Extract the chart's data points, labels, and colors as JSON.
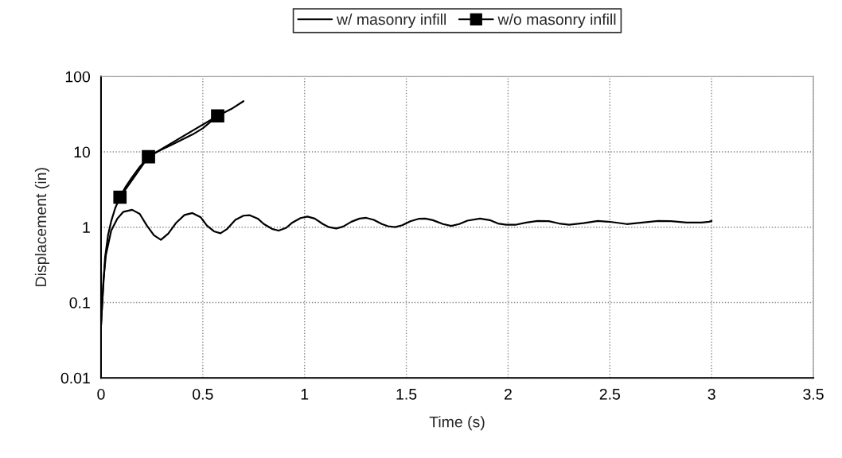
{
  "chart_data": {
    "type": "line",
    "xlabel": "Time (s)",
    "ylabel": "Displacement (in)",
    "log": "y",
    "xlim": [
      0,
      3.5
    ],
    "xticks": [
      0,
      0.5,
      1,
      1.5,
      2,
      2.5,
      3,
      3.5
    ],
    "ylim": [
      0.01,
      100
    ],
    "yticks": [
      {
        "value": 0.01,
        "label": "0.01"
      },
      {
        "value": 0.1,
        "label": "0.1"
      },
      1,
      10,
      100
    ],
    "grid": true,
    "legend": "top",
    "line_style": "solid",
    "series": [
      {
        "name": "w/ masonry infill",
        "color": "#000000",
        "marker": "none",
        "x": [
          0,
          0.012,
          0.024,
          0.05,
          0.08,
          0.11,
          0.153,
          0.19,
          0.225,
          0.26,
          0.294,
          0.33,
          0.37,
          0.41,
          0.449,
          0.49,
          0.52,
          0.555,
          0.587,
          0.62,
          0.66,
          0.7,
          0.731,
          0.77,
          0.8,
          0.84,
          0.873,
          0.91,
          0.94,
          0.98,
          1.014,
          1.05,
          1.09,
          1.12,
          1.156,
          1.19,
          1.23,
          1.27,
          1.303,
          1.34,
          1.38,
          1.41,
          1.445,
          1.48,
          1.52,
          1.56,
          1.593,
          1.63,
          1.68,
          1.721,
          1.76,
          1.8,
          1.862,
          1.91,
          1.95,
          1.991,
          2.04,
          2.09,
          2.145,
          2.2,
          2.25,
          2.3,
          2.37,
          2.441,
          2.51,
          2.583,
          2.66,
          2.737,
          2.8,
          2.877,
          2.95,
          2.988,
          3.0
        ],
        "values": [
          0.05,
          0.2,
          0.43,
          0.9,
          1.3,
          1.6,
          1.7,
          1.5,
          1.05,
          0.78,
          0.68,
          0.82,
          1.15,
          1.45,
          1.54,
          1.35,
          1.05,
          0.88,
          0.83,
          0.95,
          1.25,
          1.42,
          1.44,
          1.3,
          1.1,
          0.95,
          0.9,
          0.98,
          1.15,
          1.32,
          1.38,
          1.3,
          1.1,
          1.0,
          0.96,
          1.02,
          1.18,
          1.3,
          1.33,
          1.25,
          1.1,
          1.03,
          1.0,
          1.06,
          1.2,
          1.29,
          1.3,
          1.24,
          1.1,
          1.04,
          1.1,
          1.22,
          1.3,
          1.24,
          1.12,
          1.08,
          1.08,
          1.15,
          1.21,
          1.2,
          1.12,
          1.08,
          1.13,
          1.21,
          1.17,
          1.1,
          1.15,
          1.21,
          1.2,
          1.15,
          1.15,
          1.18,
          1.21
        ]
      },
      {
        "name": "w/o masonry infill",
        "color": "#000000",
        "marker": "square",
        "x": [
          0.093,
          0.233,
          0.573
        ],
        "values": [
          2.5,
          8.6,
          30
        ]
      },
      {
        "color": "#000000",
        "marker": "none",
        "x": [
          0,
          0.01,
          0.02,
          0.035,
          0.05,
          0.07,
          0.093,
          0.12,
          0.15,
          0.19,
          0.233,
          0.29,
          0.35,
          0.45,
          0.5,
          0.573,
          0.64,
          0.7
        ],
        "values": [
          0.05,
          0.15,
          0.4,
          0.8,
          1.2,
          1.8,
          2.5,
          3.4,
          4.5,
          6.3,
          8.6,
          10.5,
          12.5,
          17,
          20.5,
          30,
          37,
          47
        ]
      }
    ]
  }
}
